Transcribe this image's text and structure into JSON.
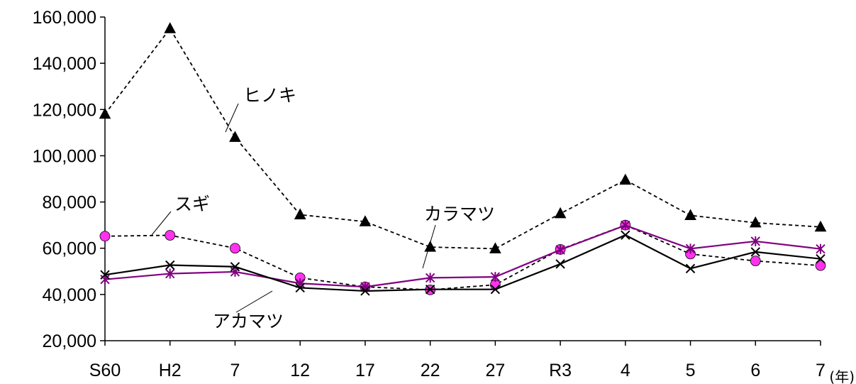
{
  "chart_data": {
    "type": "line",
    "categories": [
      "S60",
      "H2",
      "7",
      "12",
      "17",
      "22",
      "27",
      "R3",
      "4",
      "5",
      "6",
      "7"
    ],
    "x_unit": "(年)",
    "ylim": [
      20000,
      160000
    ],
    "yticks": [
      20000,
      40000,
      60000,
      80000,
      100000,
      120000,
      140000,
      160000
    ],
    "ytick_labels": [
      "20,000",
      "40,000",
      "60,000",
      "80,000",
      "100,000",
      "120,000",
      "140,000",
      "160,000"
    ],
    "grid": false,
    "legend": "none (series labelled inline with leader lines)",
    "series": [
      {
        "name": "ヒノキ",
        "color": "#000000",
        "line": "dashed",
        "marker": "triangle",
        "values": [
          118000,
          155000,
          108000,
          74500,
          71500,
          60500,
          59800,
          75000,
          89500,
          74200,
          71000,
          69200
        ]
      },
      {
        "name": "スギ",
        "color": "#000000",
        "marker_color": "#ff33ee",
        "line": "dashed",
        "marker": "circle",
        "values": [
          65200,
          65600,
          60000,
          47200,
          43300,
          42000,
          44200,
          59500,
          70000,
          57500,
          54500,
          52500
        ]
      },
      {
        "name": "カラマツ",
        "color": "#800080",
        "line": "solid",
        "marker": "asterisk",
        "values": [
          46500,
          49000,
          49800,
          44800,
          43300,
          47200,
          47600,
          59300,
          69900,
          59800,
          63000,
          59700
        ]
      },
      {
        "name": "アカマツ",
        "color": "#000000",
        "line": "solid",
        "marker": "cross",
        "values": [
          48500,
          52700,
          52000,
          42900,
          41500,
          42200,
          42200,
          53200,
          65700,
          51200,
          58400,
          55400
        ]
      }
    ]
  }
}
